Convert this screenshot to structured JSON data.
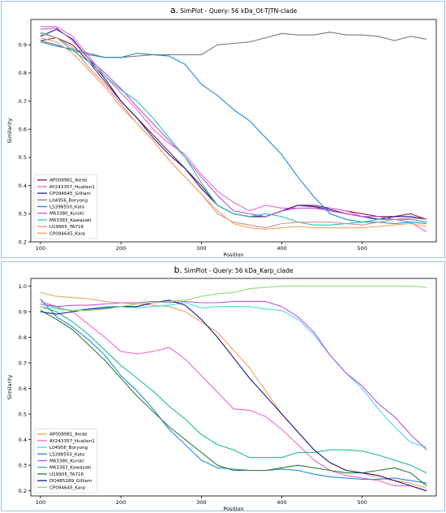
{
  "chart_data": [
    {
      "type": "line",
      "panel_letter": "a.",
      "title": "SimPlot - Query: 56 kDa_Ot-TJTN-clade",
      "xlabel": "Position",
      "ylabel": "Similarity",
      "xlim": [
        88,
        592
      ],
      "ylim": [
        0.2,
        0.99
      ],
      "xticks": [
        100,
        200,
        300,
        400,
        500
      ],
      "yticks": [
        0.2,
        0.3,
        0.4,
        0.5,
        0.6,
        0.7,
        0.8,
        0.9
      ],
      "legend_position": "lower-left",
      "x": [
        100,
        120,
        140,
        160,
        180,
        200,
        220,
        240,
        260,
        280,
        300,
        320,
        340,
        360,
        380,
        400,
        420,
        440,
        460,
        480,
        500,
        520,
        540,
        560,
        580
      ],
      "series": [
        {
          "name": "AP008981_Ikeda",
          "color": "#8b1a4a",
          "values": [
            0.915,
            0.925,
            0.9,
            0.84,
            0.77,
            0.7,
            0.64,
            0.58,
            0.52,
            0.46,
            0.4,
            0.33,
            0.3,
            0.29,
            0.29,
            0.31,
            0.33,
            0.33,
            0.32,
            0.31,
            0.3,
            0.29,
            0.29,
            0.3,
            0.28
          ]
        },
        {
          "name": "AY243357_Hualien1",
          "color": "#ee66cc",
          "values": [
            0.965,
            0.965,
            0.93,
            0.86,
            0.79,
            0.73,
            0.67,
            0.6,
            0.55,
            0.51,
            0.44,
            0.38,
            0.34,
            0.31,
            0.33,
            0.32,
            0.32,
            0.32,
            0.32,
            0.31,
            0.29,
            0.28,
            0.28,
            0.27,
            0.235
          ]
        },
        {
          "name": "CP094645_Gilliam",
          "color": "#1a1a8c",
          "values": [
            0.93,
            0.955,
            0.92,
            0.85,
            0.78,
            0.7,
            0.64,
            0.57,
            0.51,
            0.46,
            0.39,
            0.33,
            0.3,
            0.29,
            0.29,
            0.31,
            0.33,
            0.325,
            0.315,
            0.3,
            0.29,
            0.28,
            0.29,
            0.29,
            0.28
          ]
        },
        {
          "name": "L04956_Boryong",
          "color": "#7a7a7a",
          "values": [
            0.91,
            0.895,
            0.885,
            0.87,
            0.855,
            0.855,
            0.86,
            0.865,
            0.865,
            0.865,
            0.865,
            0.9,
            0.905,
            0.91,
            0.925,
            0.94,
            0.935,
            0.935,
            0.945,
            0.935,
            0.935,
            0.93,
            0.915,
            0.93,
            0.92
          ]
        },
        {
          "name": "LS398550_Kato",
          "color": "#1f8be0",
          "values": [
            0.915,
            0.9,
            0.88,
            0.865,
            0.855,
            0.855,
            0.87,
            0.865,
            0.86,
            0.83,
            0.76,
            0.72,
            0.67,
            0.63,
            0.57,
            0.51,
            0.43,
            0.36,
            0.3,
            0.28,
            0.27,
            0.27,
            0.265,
            0.27,
            0.265
          ]
        },
        {
          "name": "M63380_Kuroki",
          "color": "#bb55dd",
          "values": [
            0.955,
            0.96,
            0.915,
            0.85,
            0.8,
            0.745,
            0.68,
            0.62,
            0.56,
            0.5,
            0.43,
            0.365,
            0.31,
            0.3,
            0.29,
            0.31,
            0.32,
            0.32,
            0.31,
            0.3,
            0.29,
            0.29,
            0.28,
            0.28,
            0.27
          ]
        },
        {
          "name": "M63383_Kawasaki",
          "color": "#22ccaa",
          "values": [
            0.945,
            0.925,
            0.88,
            0.84,
            0.79,
            0.74,
            0.7,
            0.64,
            0.57,
            0.5,
            0.41,
            0.33,
            0.3,
            0.29,
            0.3,
            0.29,
            0.27,
            0.26,
            0.26,
            0.265,
            0.27,
            0.28,
            0.28,
            0.28,
            0.27
          ]
        },
        {
          "name": "U19905_TA716",
          "color": "#e08a8a",
          "values": [
            0.94,
            0.925,
            0.89,
            0.82,
            0.76,
            0.69,
            0.62,
            0.56,
            0.49,
            0.43,
            0.37,
            0.3,
            0.27,
            0.26,
            0.25,
            0.265,
            0.27,
            0.27,
            0.27,
            0.265,
            0.26,
            0.27,
            0.28,
            0.285,
            0.28
          ]
        },
        {
          "name": "CP094645_Karp",
          "color": "#f4a460",
          "values": [
            0.925,
            0.91,
            0.87,
            0.81,
            0.75,
            0.68,
            0.62,
            0.56,
            0.49,
            0.43,
            0.37,
            0.31,
            0.265,
            0.25,
            0.245,
            0.25,
            0.255,
            0.25,
            0.25,
            0.25,
            0.25,
            0.255,
            0.26,
            0.265,
            0.255
          ]
        }
      ]
    },
    {
      "type": "line",
      "panel_letter": "b.",
      "title": "SimPlot - Query: 56 kDa_Karp_clade",
      "xlabel": "Position",
      "ylabel": "Similarity",
      "xlim": [
        88,
        592
      ],
      "ylim": [
        0.18,
        1.03
      ],
      "xticks": [
        100,
        200,
        300,
        400,
        500
      ],
      "yticks": [
        0.2,
        0.3,
        0.4,
        0.5,
        0.6,
        0.7,
        0.8,
        0.9,
        1.0
      ],
      "legend_position": "lower-left",
      "x": [
        100,
        120,
        140,
        160,
        180,
        200,
        220,
        240,
        260,
        280,
        300,
        320,
        340,
        360,
        380,
        400,
        420,
        440,
        460,
        480,
        500,
        520,
        540,
        560,
        580
      ],
      "series": [
        {
          "name": "AP008981_Ikeda",
          "color": "#f4a460",
          "values": [
            0.975,
            0.96,
            0.955,
            0.95,
            0.94,
            0.935,
            0.93,
            0.925,
            0.92,
            0.9,
            0.86,
            0.82,
            0.75,
            0.68,
            0.59,
            0.5,
            0.43,
            0.36,
            0.31,
            0.28,
            0.27,
            0.25,
            0.24,
            0.23,
            0.21
          ]
        },
        {
          "name": "AY243357_Hualien1",
          "color": "#ee66cc",
          "values": [
            0.94,
            0.92,
            0.9,
            0.85,
            0.8,
            0.745,
            0.735,
            0.745,
            0.76,
            0.715,
            0.65,
            0.585,
            0.52,
            0.515,
            0.49,
            0.44,
            0.38,
            0.32,
            0.28,
            0.26,
            0.25,
            0.24,
            0.22,
            0.22,
            0.2
          ]
        },
        {
          "name": "L04956_Boryong",
          "color": "#44ddee",
          "values": [
            0.93,
            0.915,
            0.905,
            0.91,
            0.92,
            0.92,
            0.915,
            0.92,
            0.925,
            0.935,
            0.915,
            0.92,
            0.92,
            0.92,
            0.91,
            0.905,
            0.87,
            0.81,
            0.73,
            0.66,
            0.6,
            0.52,
            0.45,
            0.39,
            0.37
          ]
        },
        {
          "name": "LS398550_Kato",
          "color": "#1f8be0",
          "values": [
            0.95,
            0.88,
            0.84,
            0.79,
            0.73,
            0.65,
            0.59,
            0.52,
            0.44,
            0.38,
            0.32,
            0.29,
            0.285,
            0.28,
            0.28,
            0.285,
            0.28,
            0.265,
            0.255,
            0.25,
            0.245,
            0.245,
            0.25,
            0.24,
            0.23
          ]
        },
        {
          "name": "M63380_Kuroki",
          "color": "#bb55dd",
          "values": [
            0.93,
            0.92,
            0.925,
            0.925,
            0.93,
            0.935,
            0.935,
            0.94,
            0.935,
            0.94,
            0.935,
            0.935,
            0.94,
            0.94,
            0.94,
            0.92,
            0.88,
            0.82,
            0.73,
            0.66,
            0.61,
            0.54,
            0.49,
            0.42,
            0.36
          ]
        },
        {
          "name": "M63383_Kawasaki",
          "color": "#22bb99",
          "values": [
            0.92,
            0.9,
            0.86,
            0.81,
            0.75,
            0.69,
            0.64,
            0.59,
            0.53,
            0.48,
            0.42,
            0.38,
            0.36,
            0.33,
            0.33,
            0.33,
            0.35,
            0.35,
            0.36,
            0.36,
            0.355,
            0.34,
            0.32,
            0.3,
            0.27
          ]
        },
        {
          "name": "U19905_TA716",
          "color": "#2e7d32",
          "values": [
            0.905,
            0.87,
            0.83,
            0.77,
            0.71,
            0.64,
            0.57,
            0.51,
            0.45,
            0.4,
            0.35,
            0.3,
            0.28,
            0.28,
            0.28,
            0.29,
            0.3,
            0.29,
            0.28,
            0.27,
            0.27,
            0.28,
            0.29,
            0.27,
            0.22
          ]
        },
        {
          "name": "DQ485289_Gilliam",
          "color": "#1a1a8c",
          "values": [
            0.9,
            0.89,
            0.9,
            0.91,
            0.915,
            0.92,
            0.92,
            0.935,
            0.945,
            0.925,
            0.87,
            0.8,
            0.72,
            0.64,
            0.57,
            0.5,
            0.43,
            0.36,
            0.31,
            0.28,
            0.27,
            0.26,
            0.24,
            0.22,
            0.2
          ]
        },
        {
          "name": "CP094645_Karp",
          "color": "#88dd66",
          "values": [
            0.92,
            0.91,
            0.905,
            0.905,
            0.91,
            0.92,
            0.93,
            0.935,
            0.94,
            0.945,
            0.96,
            0.97,
            0.975,
            0.99,
            0.995,
            1.0,
            1.0,
            1.0,
            1.0,
            1.0,
            1.0,
            1.0,
            1.0,
            1.0,
            0.995
          ]
        }
      ]
    }
  ]
}
